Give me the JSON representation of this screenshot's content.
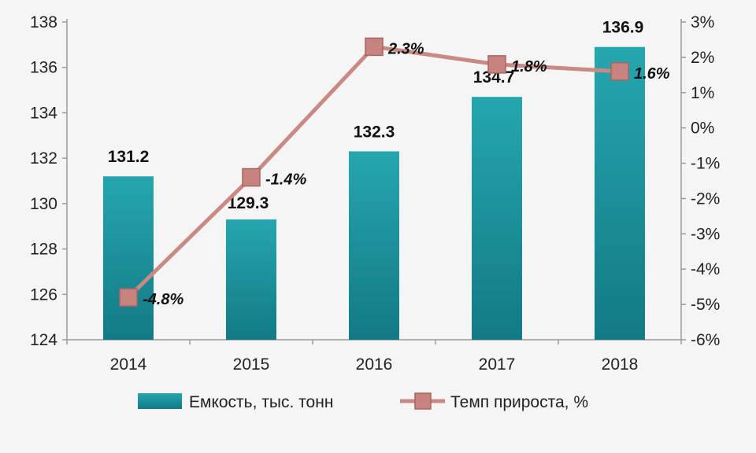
{
  "chart_data": {
    "type": "bar",
    "categories": [
      "2014",
      "2015",
      "2016",
      "2017",
      "2018"
    ],
    "series": [
      {
        "name": "Емкость, тыс. тонн",
        "type": "bar",
        "axis": "left",
        "values": [
          131.2,
          129.3,
          132.3,
          134.7,
          136.9
        ],
        "labels": [
          "131.2",
          "129.3",
          "132.3",
          "134.7",
          "136.9"
        ],
        "color": "#1f9aa5"
      },
      {
        "name": "Темп прироста, %",
        "type": "line",
        "axis": "right",
        "values": [
          -4.8,
          -1.4,
          2.3,
          1.8,
          1.6
        ],
        "labels": [
          "-4.8%",
          "-1.4%",
          "2.3%",
          "1.8%",
          "1.6%"
        ],
        "color": "#c98a84"
      }
    ],
    "y_left": {
      "min": 124,
      "max": 138,
      "ticks": [
        "124",
        "126",
        "128",
        "130",
        "132",
        "134",
        "136",
        "138"
      ]
    },
    "y_right": {
      "min": -6,
      "max": 3,
      "ticks": [
        "-6%",
        "-5%",
        "-4%",
        "-3%",
        "-2%",
        "-1%",
        "0%",
        "1%",
        "2%",
        "3%"
      ]
    },
    "legend_position": "bottom",
    "grid": false
  }
}
